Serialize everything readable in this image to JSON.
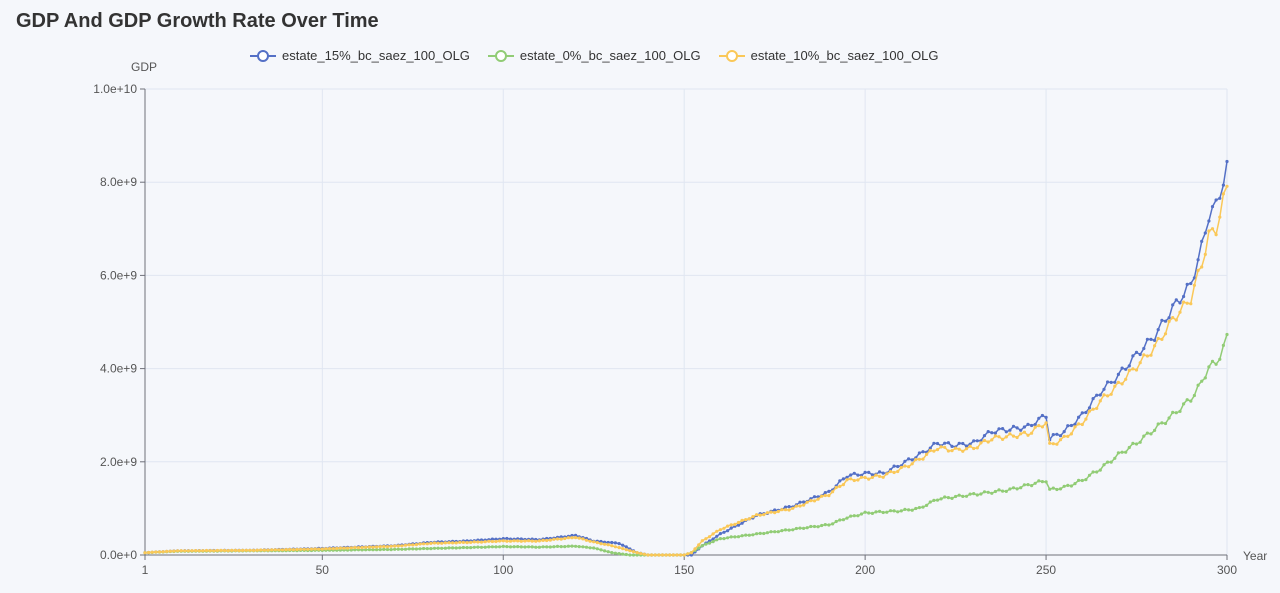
{
  "title": "GDP And GDP Growth Rate Over Time",
  "chart_data": {
    "type": "line",
    "title": "GDP And GDP Growth Rate Over Time",
    "xlabel": "Year",
    "ylabel": "GDP",
    "xlim": [
      1,
      300
    ],
    "ylim": [
      0,
      10000000000
    ],
    "x_ticks": [
      "1",
      "50",
      "100",
      "150",
      "200",
      "250",
      "300"
    ],
    "y_ticks": [
      "0.0e+0",
      "2.0e+9",
      "4.0e+9",
      "6.0e+9",
      "8.0e+9",
      "1.0e+10"
    ],
    "grid": true,
    "legend_position": "top",
    "series": [
      {
        "name": "estate_15%_bc_saez_100_OLG",
        "color": "#5470c6",
        "points": [
          [
            1,
            0.05
          ],
          [
            10,
            0.09
          ],
          [
            30,
            0.1
          ],
          [
            50,
            0.14
          ],
          [
            70,
            0.2
          ],
          [
            80,
            0.27
          ],
          [
            90,
            0.3
          ],
          [
            100,
            0.35
          ],
          [
            110,
            0.33
          ],
          [
            120,
            0.42
          ],
          [
            125,
            0.3
          ],
          [
            132,
            0.25
          ],
          [
            137,
            0.05
          ],
          [
            140,
            0
          ],
          [
            150,
            0
          ],
          [
            152,
            0
          ],
          [
            155,
            0.2
          ],
          [
            160,
            0.45
          ],
          [
            170,
            0.85
          ],
          [
            180,
            1.05
          ],
          [
            190,
            1.35
          ],
          [
            195,
            1.7
          ],
          [
            200,
            1.75
          ],
          [
            205,
            1.75
          ],
          [
            210,
            1.95
          ],
          [
            215,
            2.15
          ],
          [
            220,
            2.4
          ],
          [
            225,
            2.35
          ],
          [
            230,
            2.4
          ],
          [
            235,
            2.65
          ],
          [
            240,
            2.7
          ],
          [
            245,
            2.75
          ],
          [
            250,
            3.0
          ],
          [
            251,
            2.5
          ],
          [
            255,
            2.65
          ],
          [
            260,
            3.0
          ],
          [
            265,
            3.5
          ],
          [
            270,
            3.85
          ],
          [
            275,
            4.3
          ],
          [
            280,
            4.7
          ],
          [
            285,
            5.3
          ],
          [
            290,
            5.8
          ],
          [
            293,
            6.6
          ],
          [
            295,
            7.3
          ],
          [
            297,
            7.5
          ],
          [
            300,
            8.3
          ]
        ]
      },
      {
        "name": "estate_0%_bc_saez_100_OLG",
        "color": "#91cc75",
        "points": [
          [
            1,
            0.05
          ],
          [
            10,
            0.08
          ],
          [
            30,
            0.09
          ],
          [
            50,
            0.1
          ],
          [
            70,
            0.12
          ],
          [
            80,
            0.14
          ],
          [
            90,
            0.16
          ],
          [
            100,
            0.18
          ],
          [
            110,
            0.17
          ],
          [
            120,
            0.19
          ],
          [
            125,
            0.15
          ],
          [
            130,
            0.05
          ],
          [
            135,
            0
          ],
          [
            150,
            0
          ],
          [
            152,
            0.05
          ],
          [
            155,
            0.2
          ],
          [
            160,
            0.35
          ],
          [
            170,
            0.45
          ],
          [
            180,
            0.55
          ],
          [
            190,
            0.65
          ],
          [
            195,
            0.8
          ],
          [
            200,
            0.9
          ],
          [
            210,
            0.95
          ],
          [
            215,
            1.0
          ],
          [
            220,
            1.2
          ],
          [
            230,
            1.3
          ],
          [
            240,
            1.4
          ],
          [
            245,
            1.5
          ],
          [
            250,
            1.6
          ],
          [
            251,
            1.4
          ],
          [
            255,
            1.45
          ],
          [
            260,
            1.6
          ],
          [
            265,
            1.85
          ],
          [
            270,
            2.15
          ],
          [
            275,
            2.4
          ],
          [
            280,
            2.7
          ],
          [
            285,
            3.0
          ],
          [
            290,
            3.35
          ],
          [
            293,
            3.7
          ],
          [
            295,
            4.05
          ],
          [
            297,
            4.1
          ],
          [
            300,
            4.65
          ]
        ]
      },
      {
        "name": "estate_10%_bc_saez_100_OLG",
        "color": "#fac858",
        "points": [
          [
            1,
            0.05
          ],
          [
            10,
            0.09
          ],
          [
            30,
            0.1
          ],
          [
            50,
            0.13
          ],
          [
            70,
            0.19
          ],
          [
            80,
            0.25
          ],
          [
            90,
            0.27
          ],
          [
            100,
            0.3
          ],
          [
            110,
            0.3
          ],
          [
            120,
            0.38
          ],
          [
            125,
            0.28
          ],
          [
            130,
            0.2
          ],
          [
            137,
            0.05
          ],
          [
            140,
            0
          ],
          [
            150,
            0
          ],
          [
            152,
            0.05
          ],
          [
            155,
            0.3
          ],
          [
            160,
            0.55
          ],
          [
            170,
            0.85
          ],
          [
            180,
            1.0
          ],
          [
            190,
            1.3
          ],
          [
            195,
            1.6
          ],
          [
            200,
            1.65
          ],
          [
            205,
            1.7
          ],
          [
            210,
            1.85
          ],
          [
            215,
            2.05
          ],
          [
            220,
            2.3
          ],
          [
            225,
            2.25
          ],
          [
            230,
            2.3
          ],
          [
            235,
            2.5
          ],
          [
            240,
            2.55
          ],
          [
            245,
            2.6
          ],
          [
            250,
            2.85
          ],
          [
            251,
            2.35
          ],
          [
            255,
            2.5
          ],
          [
            260,
            2.85
          ],
          [
            265,
            3.3
          ],
          [
            270,
            3.65
          ],
          [
            275,
            4.05
          ],
          [
            280,
            4.45
          ],
          [
            285,
            5.05
          ],
          [
            290,
            5.5
          ],
          [
            293,
            6.25
          ],
          [
            295,
            6.85
          ],
          [
            297,
            7.0
          ],
          [
            300,
            7.9
          ]
        ]
      }
    ]
  }
}
